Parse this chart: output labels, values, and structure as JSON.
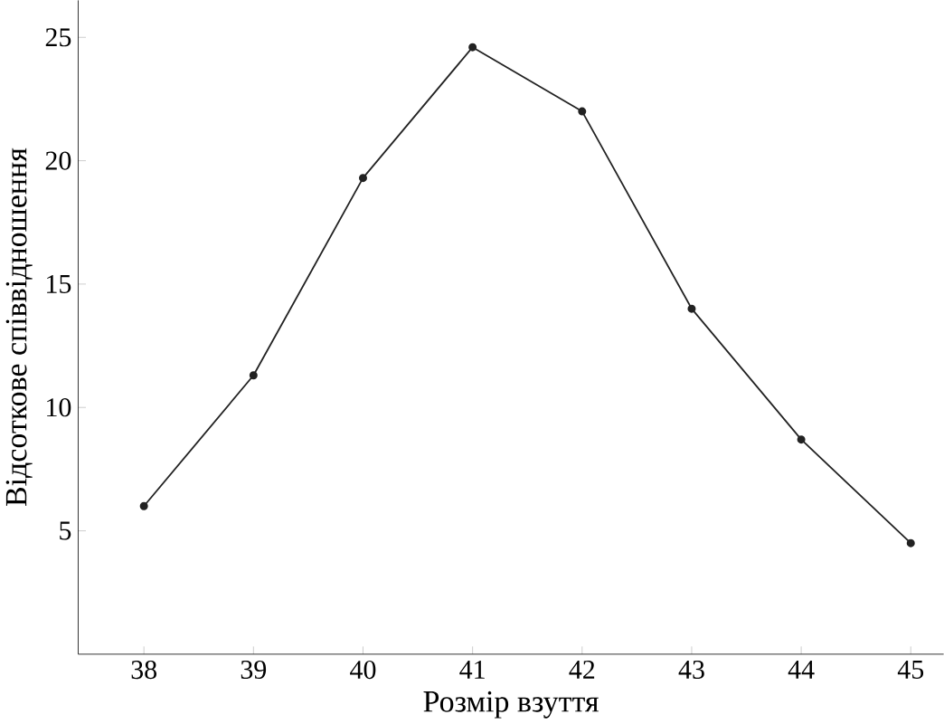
{
  "chart_data": {
    "type": "line",
    "xlabel": "Розмір взуття",
    "ylabel": "Відсоткове співвідношення",
    "x": [
      38,
      39,
      40,
      41,
      42,
      43,
      44,
      45
    ],
    "values": [
      6,
      11.3,
      19.3,
      24.6,
      22,
      14,
      8.7,
      4.5
    ],
    "color": "#222222",
    "marker": "circle",
    "xlim": [
      37.4,
      45.3
    ],
    "ylim": [
      0,
      26.5
    ],
    "xticks": [
      38,
      39,
      40,
      41,
      42,
      43,
      44,
      45
    ],
    "yticks": [
      5,
      10,
      15,
      20,
      25
    ]
  }
}
